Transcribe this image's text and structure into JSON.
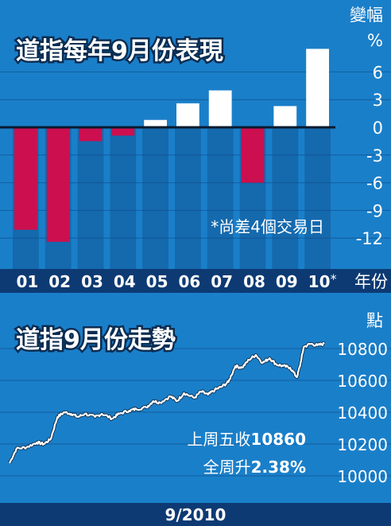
{
  "chart_data": [
    {
      "type": "bar",
      "title": "道指每年9月份表現",
      "ylabel": "變幅",
      "yunit": "%",
      "xlabel": "年份",
      "categories": [
        "01",
        "02",
        "03",
        "04",
        "05",
        "06",
        "07",
        "08",
        "09",
        "10"
      ],
      "category_marks": [
        "",
        "",
        "",
        "",
        "",
        "",
        "",
        "",
        "",
        "*"
      ],
      "values": [
        -11.1,
        -12.4,
        -1.5,
        -0.9,
        0.8,
        2.6,
        4.0,
        -6.0,
        2.3,
        8.5
      ],
      "ylim": [
        -13,
        9
      ],
      "yticks": [
        "6",
        "3",
        "0",
        "-3",
        "-6",
        "-9",
        "-12"
      ],
      "annotation": "*尚差4個交易日",
      "colors": {
        "positive": "#ffffff",
        "negative": "#cc0f4f",
        "background": "#1a7fc9",
        "category_band": "#0d3a73"
      }
    },
    {
      "type": "line",
      "title": "道指9月份走勢",
      "ylabel": "點",
      "yticks": [
        "10800",
        "10600",
        "10400",
        "10200",
        "10000"
      ],
      "ylim": [
        9980,
        10880
      ],
      "xlabel": "9/2010",
      "anchors": [
        [
          0,
          10080
        ],
        [
          2,
          10170
        ],
        [
          5,
          10180
        ],
        [
          8,
          10210
        ],
        [
          10,
          10200
        ],
        [
          12,
          10230
        ],
        [
          14,
          10370
        ],
        [
          16,
          10400
        ],
        [
          18,
          10390
        ],
        [
          20,
          10370
        ],
        [
          22,
          10390
        ],
        [
          25,
          10370
        ],
        [
          27,
          10390
        ],
        [
          30,
          10360
        ],
        [
          32,
          10390
        ],
        [
          35,
          10410
        ],
        [
          37,
          10420
        ],
        [
          40,
          10430
        ],
        [
          42,
          10470
        ],
        [
          44,
          10460
        ],
        [
          47,
          10500
        ],
        [
          49,
          10470
        ],
        [
          51,
          10520
        ],
        [
          54,
          10490
        ],
        [
          56,
          10530
        ],
        [
          58,
          10510
        ],
        [
          60,
          10540
        ],
        [
          62,
          10560
        ],
        [
          64,
          10590
        ],
        [
          66,
          10690
        ],
        [
          68,
          10680
        ],
        [
          70,
          10730
        ],
        [
          72,
          10760
        ],
        [
          74,
          10710
        ],
        [
          76,
          10740
        ],
        [
          78,
          10700
        ],
        [
          80,
          10690
        ],
        [
          82,
          10680
        ],
        [
          84,
          10620
        ],
        [
          85,
          10700
        ],
        [
          86,
          10810
        ],
        [
          88,
          10830
        ],
        [
          90,
          10820
        ],
        [
          92,
          10830
        ]
      ],
      "notes": [
        {
          "label": "上周五收",
          "value": "10860"
        },
        {
          "label": "全周升",
          "value": "2.38%"
        }
      ],
      "colors": {
        "line": "#ffffff",
        "background": "#1a7fc9",
        "footer": "#0d3a73"
      }
    }
  ]
}
